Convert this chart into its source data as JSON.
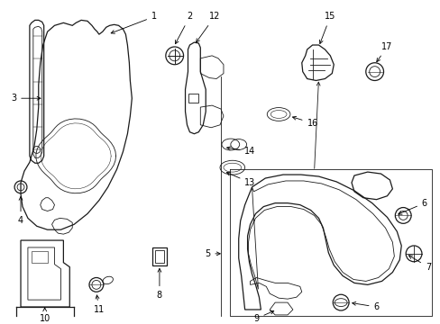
{
  "background_color": "#ffffff",
  "fig_width": 4.89,
  "fig_height": 3.6,
  "dpi": 100,
  "line_color": "#1a1a1a",
  "text_color": "#000000",
  "label_fontsize": 7.0
}
